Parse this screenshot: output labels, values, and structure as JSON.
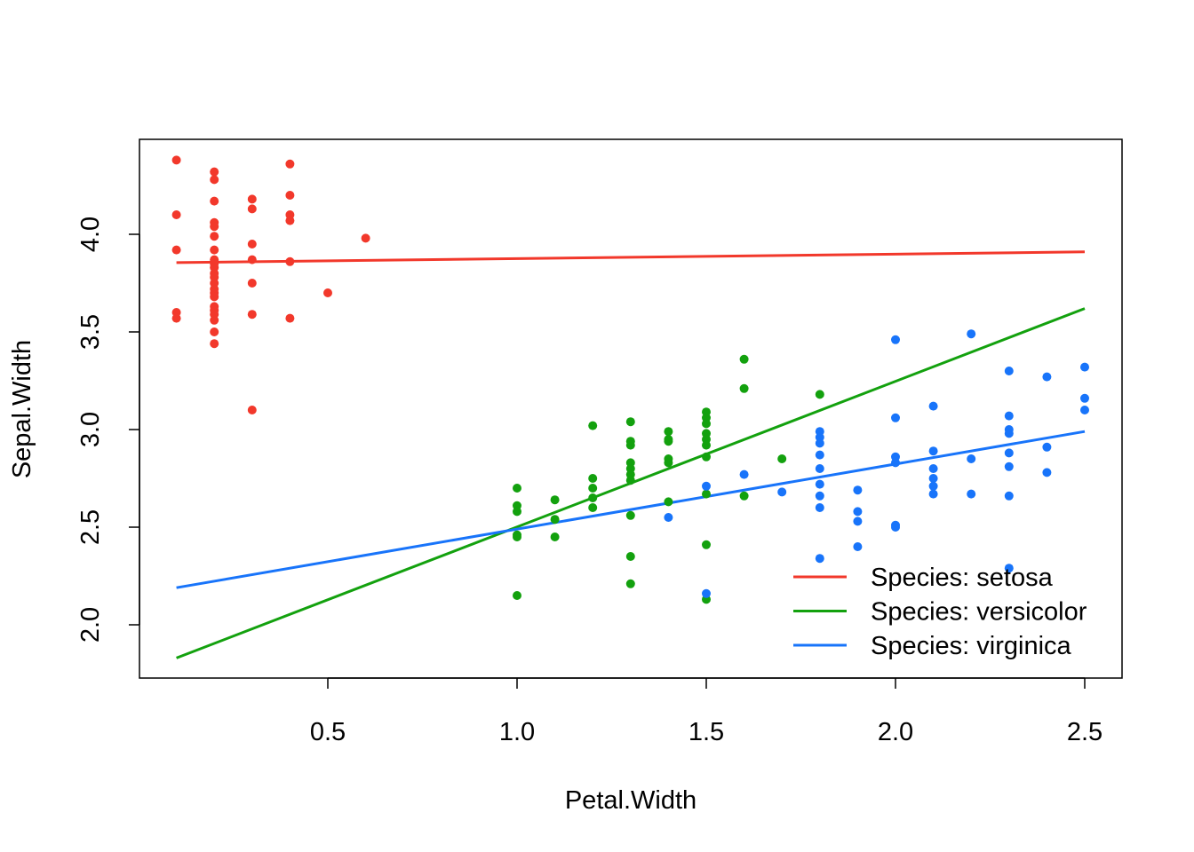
{
  "chart_data": {
    "type": "scatter",
    "title": "",
    "xlabel": "Petal.Width",
    "ylabel": "Sepal.Width",
    "xlim": [
      0.04,
      2.56
    ],
    "ylim": [
      1.73,
      4.49
    ],
    "xticks": [
      0.5,
      1.0,
      1.5,
      2.0,
      2.5
    ],
    "xtick_labels": [
      "0.5",
      "1.0",
      "1.5",
      "2.0",
      "2.5"
    ],
    "yticks": [
      2.0,
      2.5,
      3.0,
      3.5,
      4.0
    ],
    "ytick_labels": [
      "2.0",
      "2.5",
      "3.0",
      "3.5",
      "4.0"
    ],
    "grid": false,
    "legend_position": "bottom-right",
    "series": [
      {
        "name": "Species: setosa",
        "color": "#F2382B",
        "fit_line": {
          "x": [
            0.1,
            2.5
          ],
          "y": [
            3.855,
            3.91
          ]
        },
        "points": [
          [
            0.1,
            4.38
          ],
          [
            0.1,
            4.1
          ],
          [
            0.1,
            3.92
          ],
          [
            0.1,
            3.6
          ],
          [
            0.1,
            3.57
          ],
          [
            0.2,
            4.32
          ],
          [
            0.2,
            4.28
          ],
          [
            0.2,
            4.17
          ],
          [
            0.2,
            4.06
          ],
          [
            0.2,
            4.04
          ],
          [
            0.2,
            3.99
          ],
          [
            0.2,
            3.92
          ],
          [
            0.2,
            3.87
          ],
          [
            0.2,
            3.85
          ],
          [
            0.2,
            3.83
          ],
          [
            0.2,
            3.8
          ],
          [
            0.2,
            3.78
          ],
          [
            0.2,
            3.75
          ],
          [
            0.2,
            3.72
          ],
          [
            0.2,
            3.7
          ],
          [
            0.2,
            3.68
          ],
          [
            0.2,
            3.63
          ],
          [
            0.2,
            3.61
          ],
          [
            0.2,
            3.59
          ],
          [
            0.2,
            3.56
          ],
          [
            0.2,
            3.5
          ],
          [
            0.2,
            3.44
          ],
          [
            0.3,
            4.18
          ],
          [
            0.3,
            4.13
          ],
          [
            0.3,
            3.95
          ],
          [
            0.3,
            3.87
          ],
          [
            0.3,
            3.75
          ],
          [
            0.3,
            3.59
          ],
          [
            0.3,
            3.1
          ],
          [
            0.4,
            4.36
          ],
          [
            0.4,
            4.2
          ],
          [
            0.4,
            4.1
          ],
          [
            0.4,
            4.07
          ],
          [
            0.4,
            3.86
          ],
          [
            0.4,
            3.57
          ],
          [
            0.5,
            3.7
          ],
          [
            0.6,
            3.98
          ]
        ]
      },
      {
        "name": "Species: versicolor",
        "color": "#13A10E",
        "fit_line": {
          "x": [
            0.1,
            2.5
          ],
          "y": [
            1.83,
            3.62
          ]
        },
        "points": [
          [
            1.0,
            2.7
          ],
          [
            1.0,
            2.61
          ],
          [
            1.0,
            2.58
          ],
          [
            1.0,
            2.46
          ],
          [
            1.0,
            2.45
          ],
          [
            1.0,
            2.15
          ],
          [
            1.1,
            2.64
          ],
          [
            1.1,
            2.54
          ],
          [
            1.1,
            2.45
          ],
          [
            1.2,
            3.02
          ],
          [
            1.2,
            2.75
          ],
          [
            1.2,
            2.7
          ],
          [
            1.2,
            2.65
          ],
          [
            1.2,
            2.6
          ],
          [
            1.3,
            3.04
          ],
          [
            1.3,
            2.94
          ],
          [
            1.3,
            2.92
          ],
          [
            1.3,
            2.83
          ],
          [
            1.3,
            2.8
          ],
          [
            1.3,
            2.77
          ],
          [
            1.3,
            2.74
          ],
          [
            1.3,
            2.56
          ],
          [
            1.3,
            2.35
          ],
          [
            1.3,
            2.21
          ],
          [
            1.4,
            2.99
          ],
          [
            1.4,
            2.95
          ],
          [
            1.4,
            2.94
          ],
          [
            1.4,
            2.85
          ],
          [
            1.4,
            2.83
          ],
          [
            1.4,
            2.63
          ],
          [
            1.5,
            3.09
          ],
          [
            1.5,
            3.06
          ],
          [
            1.5,
            3.03
          ],
          [
            1.5,
            2.98
          ],
          [
            1.5,
            2.95
          ],
          [
            1.5,
            2.92
          ],
          [
            1.5,
            2.86
          ],
          [
            1.5,
            2.67
          ],
          [
            1.5,
            2.41
          ],
          [
            1.5,
            2.13
          ],
          [
            1.6,
            3.36
          ],
          [
            1.6,
            3.21
          ],
          [
            1.6,
            2.66
          ],
          [
            1.7,
            2.85
          ],
          [
            1.8,
            3.18
          ]
        ]
      },
      {
        "name": "Species: virginica",
        "color": "#1874FA",
        "fit_line": {
          "x": [
            0.1,
            2.5
          ],
          "y": [
            2.19,
            2.99
          ]
        },
        "points": [
          [
            1.4,
            2.55
          ],
          [
            1.5,
            2.71
          ],
          [
            1.5,
            2.16
          ],
          [
            1.6,
            2.77
          ],
          [
            1.7,
            2.68
          ],
          [
            1.8,
            2.99
          ],
          [
            1.8,
            2.96
          ],
          [
            1.8,
            2.93
          ],
          [
            1.8,
            2.87
          ],
          [
            1.8,
            2.8
          ],
          [
            1.8,
            2.72
          ],
          [
            1.8,
            2.66
          ],
          [
            1.8,
            2.6
          ],
          [
            1.8,
            2.34
          ],
          [
            1.9,
            2.69
          ],
          [
            1.9,
            2.58
          ],
          [
            1.9,
            2.53
          ],
          [
            1.9,
            2.4
          ],
          [
            2.0,
            3.46
          ],
          [
            2.0,
            3.06
          ],
          [
            2.0,
            2.86
          ],
          [
            2.0,
            2.83
          ],
          [
            2.0,
            2.51
          ],
          [
            2.0,
            2.5
          ],
          [
            2.1,
            3.12
          ],
          [
            2.1,
            2.89
          ],
          [
            2.1,
            2.8
          ],
          [
            2.1,
            2.75
          ],
          [
            2.1,
            2.71
          ],
          [
            2.1,
            2.67
          ],
          [
            2.2,
            3.49
          ],
          [
            2.2,
            2.85
          ],
          [
            2.2,
            2.67
          ],
          [
            2.3,
            3.3
          ],
          [
            2.3,
            3.07
          ],
          [
            2.3,
            3.0
          ],
          [
            2.3,
            2.98
          ],
          [
            2.3,
            2.88
          ],
          [
            2.3,
            2.81
          ],
          [
            2.3,
            2.66
          ],
          [
            2.3,
            2.29
          ],
          [
            2.4,
            3.27
          ],
          [
            2.4,
            2.91
          ],
          [
            2.4,
            2.78
          ],
          [
            2.5,
            3.32
          ],
          [
            2.5,
            3.16
          ],
          [
            2.5,
            3.1
          ]
        ]
      }
    ]
  }
}
